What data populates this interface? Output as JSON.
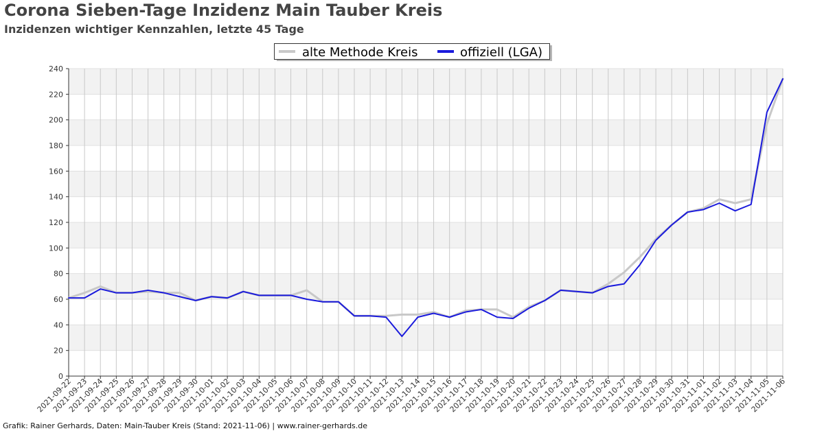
{
  "header": {
    "title": "Corona Sieben-Tage Inzidenz Main Tauber Kreis",
    "subtitle": "Inzidenzen wichtiger Kennzahlen, letzte 45 Tage"
  },
  "footer": {
    "credit": "Grafik: Rainer Gerhards, Daten: Main-Tauber Kreis (Stand: 2021-11-06) | www.rainer-gerhards.de"
  },
  "chart_data": {
    "type": "line",
    "title": "Corona Sieben-Tage Inzidenz Main Tauber Kreis",
    "subtitle": "Inzidenzen wichtiger Kennzahlen, letzte 45 Tage",
    "xlabel": "",
    "ylabel": "",
    "ylim": [
      0,
      240
    ],
    "yticks": [
      0,
      20,
      40,
      60,
      80,
      100,
      120,
      140,
      160,
      180,
      200,
      220,
      240
    ],
    "grid": true,
    "legend_position": "top-center",
    "x": [
      "2021-09-22",
      "2021-09-23",
      "2021-09-24",
      "2021-09-25",
      "2021-09-26",
      "2021-09-27",
      "2021-09-28",
      "2021-09-29",
      "2021-09-30",
      "2021-10-01",
      "2021-10-02",
      "2021-10-03",
      "2021-10-04",
      "2021-10-05",
      "2021-10-06",
      "2021-10-07",
      "2021-10-08",
      "2021-10-09",
      "2021-10-10",
      "2021-10-11",
      "2021-10-12",
      "2021-10-13",
      "2021-10-14",
      "2021-10-15",
      "2021-10-16",
      "2021-10-17",
      "2021-10-18",
      "2021-10-19",
      "2021-10-20",
      "2021-10-21",
      "2021-10-22",
      "2021-10-23",
      "2021-10-24",
      "2021-10-25",
      "2021-10-26",
      "2021-10-27",
      "2021-10-28",
      "2021-10-29",
      "2021-10-30",
      "2021-10-31",
      "2021-11-01",
      "2021-11-02",
      "2021-11-03",
      "2021-11-04",
      "2021-11-05",
      "2021-11-06"
    ],
    "series": [
      {
        "name": "alte Methode Kreis",
        "color": "#c8c8c8",
        "values": [
          61,
          65,
          70,
          65,
          65,
          66,
          65,
          65,
          59,
          62,
          61,
          66,
          63,
          63,
          63,
          67,
          58,
          58,
          47,
          47,
          47,
          48,
          48,
          50,
          46,
          51,
          52,
          52,
          46,
          54,
          59,
          67,
          66,
          65,
          72,
          81,
          93,
          107,
          118,
          128,
          131,
          138,
          135,
          138,
          197,
          232
        ]
      },
      {
        "name": "offiziell (LGA)",
        "color": "#1a1adc",
        "values": [
          61,
          61,
          68,
          65,
          65,
          67,
          65,
          62,
          59,
          62,
          61,
          66,
          63,
          63,
          63,
          60,
          58,
          58,
          47,
          47,
          46,
          31,
          46,
          49,
          46,
          50,
          52,
          46,
          45,
          53,
          59,
          67,
          66,
          65,
          70,
          72,
          87,
          106,
          118,
          128,
          130,
          135,
          129,
          134,
          206,
          232
        ]
      }
    ]
  }
}
